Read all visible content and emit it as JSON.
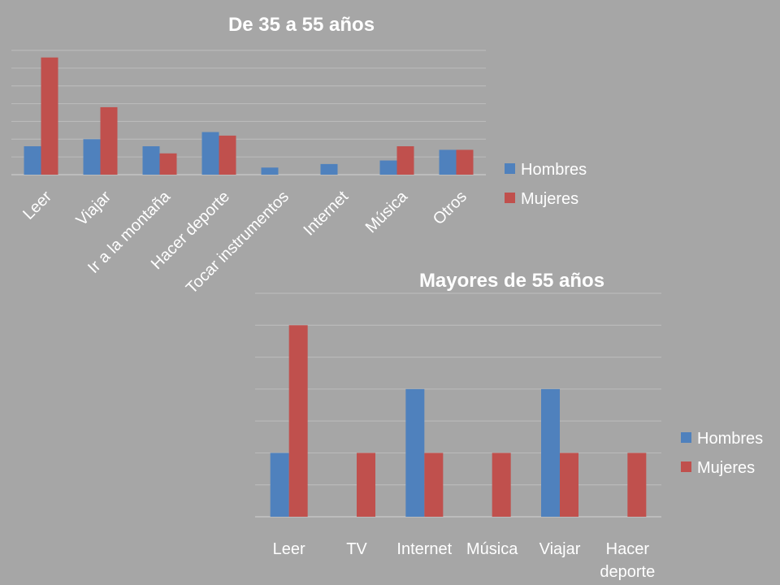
{
  "colors": {
    "hombres": "#4f81bd",
    "mujeres": "#c0504d",
    "background": "#a6a6a6"
  },
  "chart_data": [
    {
      "type": "bar",
      "title": "De 35 a 55 años",
      "categories": [
        "Leer",
        "Viajar",
        "Ir a la montaña",
        "Hacer deporte",
        "Tocar instrumentos",
        "Internet",
        "Música",
        "Otros"
      ],
      "series": [
        {
          "name": "Hombres",
          "values": [
            8,
            10,
            8,
            12,
            2,
            3,
            4,
            7
          ]
        },
        {
          "name": "Mujeres",
          "values": [
            33,
            19,
            6,
            11,
            0,
            0,
            8,
            7
          ]
        }
      ],
      "ylim": [
        0,
        35
      ],
      "grid": true,
      "legend": "right"
    },
    {
      "type": "bar",
      "title": "Mayores de 55 años",
      "categories": [
        "Leer",
        "TV",
        "Internet",
        "Música",
        "Viajar",
        "Hacer deporte"
      ],
      "series": [
        {
          "name": "Hombres",
          "values": [
            2,
            0,
            4,
            0,
            4,
            0
          ]
        },
        {
          "name": "Mujeres",
          "values": [
            6,
            2,
            2,
            2,
            2,
            2
          ]
        }
      ],
      "ylim": [
        0,
        7
      ],
      "grid": true,
      "legend": "right"
    }
  ]
}
